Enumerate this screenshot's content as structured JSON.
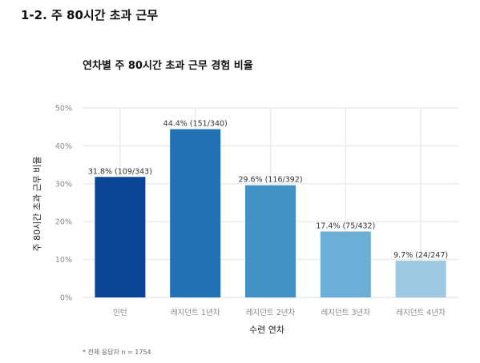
{
  "page": {
    "section_title": "1-2. 주 80시간 초과 근무"
  },
  "chart_data": {
    "type": "bar",
    "title": "연차별 주 80시간 초과 근무 경험 비율",
    "xlabel": "수련 연차",
    "ylabel": "주 80시간 초과 근무 비율",
    "categories": [
      "인턴",
      "레지던트 1년차",
      "레지던트 2년차",
      "레지던트 3년차",
      "레지던트 4년차"
    ],
    "values": [
      31.8,
      44.4,
      29.6,
      17.4,
      9.7
    ],
    "data_labels": [
      "31.8% (109/343)",
      "44.4% (151/340)",
      "29.6% (116/392)",
      "17.4% (75/432)",
      "9.7% (24/247)"
    ],
    "colors": [
      "#0b4494",
      "#2271b5",
      "#4292c6",
      "#6baed6",
      "#9ecae1"
    ],
    "ylim": [
      0,
      50
    ],
    "yticks": [
      0,
      10,
      20,
      30,
      40,
      50
    ],
    "ytick_labels": [
      "0%",
      "10%",
      "20%",
      "30%",
      "40%",
      "50%"
    ],
    "grid": true,
    "legend": "none",
    "note": "* 전체 응답자 n = 1754"
  }
}
